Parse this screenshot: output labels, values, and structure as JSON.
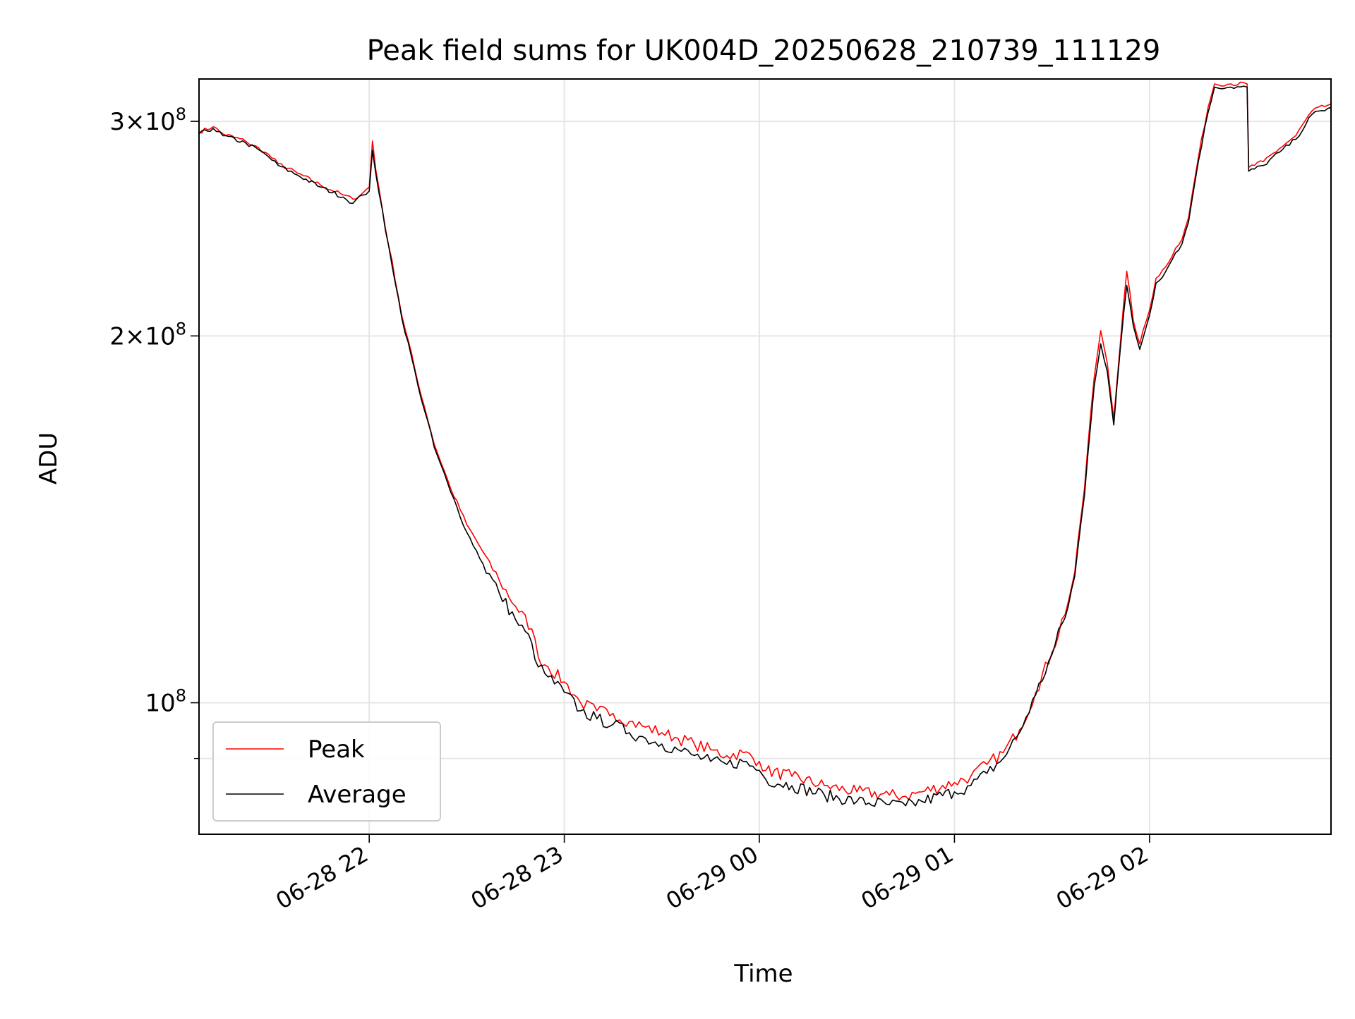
{
  "chart_data": {
    "type": "line",
    "title": "Peak field sums for UK004D_20250628_210739_111129",
    "xlabel": "Time",
    "ylabel": "ADU",
    "y_scale": "log",
    "ylim": [
      78000000,
      325000000
    ],
    "xlim": [
      "2025-06-28 21:07:39",
      "2025-06-29 02:55:49"
    ],
    "grid": true,
    "legend_position": "lower-left",
    "x_ticks": [
      {
        "value": "2025-06-28 22:00",
        "label": "06-28 22"
      },
      {
        "value": "2025-06-28 23:00",
        "label": "06-28 23"
      },
      {
        "value": "2025-06-29 00:00",
        "label": "06-29 00"
      },
      {
        "value": "2025-06-29 01:00",
        "label": "06-29 01"
      },
      {
        "value": "2025-06-29 02:00",
        "label": "06-29 02"
      }
    ],
    "y_ticks": [
      {
        "value": 100000000,
        "mantissa": "",
        "exponent": "8"
      },
      {
        "value": 200000000,
        "mantissa": "2",
        "exponent": "8"
      },
      {
        "value": 300000000,
        "mantissa": "3",
        "exponent": "8"
      }
    ],
    "y_minor_ticks": [
      90000000
    ],
    "colors": {
      "peak": "#ff0000",
      "average": "#000000",
      "grid": "#e6e6e6"
    },
    "series": [
      {
        "name": "Peak",
        "color": "#ff0000",
        "points": [
          [
            "2025-06-28 21:07:39",
            294000000.0
          ],
          [
            "2025-06-28 21:12",
            297000000.0
          ],
          [
            "2025-06-28 21:15",
            293000000.0
          ],
          [
            "2025-06-28 21:22",
            289000000.0
          ],
          [
            "2025-06-28 21:28",
            283000000.0
          ],
          [
            "2025-06-28 21:32",
            277000000.0
          ],
          [
            "2025-06-28 21:38",
            272000000.0
          ],
          [
            "2025-06-28 21:45",
            266000000.0
          ],
          [
            "2025-06-28 21:52",
            261000000.0
          ],
          [
            "2025-06-28 21:55",
            259000000.0
          ],
          [
            "2025-06-28 21:58",
            262000000.0
          ],
          [
            "2025-06-28 22:00",
            265000000.0
          ],
          [
            "2025-06-28 22:01",
            289000000.0
          ],
          [
            "2025-06-28 22:02",
            274000000.0
          ],
          [
            "2025-06-28 22:05",
            245000000.0
          ],
          [
            "2025-06-28 22:10",
            208000000.0
          ],
          [
            "2025-06-28 22:15",
            183000000.0
          ],
          [
            "2025-06-28 22:20",
            163000000.0
          ],
          [
            "2025-06-28 22:25",
            150000000.0
          ],
          [
            "2025-06-28 22:30",
            140000000.0
          ],
          [
            "2025-06-28 22:35",
            133000000.0
          ],
          [
            "2025-06-28 22:40",
            126000000.0
          ],
          [
            "2025-06-28 22:45",
            120000000.0
          ],
          [
            "2025-06-28 22:50",
            115000000.0
          ],
          [
            "2025-06-28 22:52",
            109000000.0
          ],
          [
            "2025-06-28 22:55",
            107000000.0
          ],
          [
            "2025-06-28 23:00",
            104000000.0
          ],
          [
            "2025-06-28 23:05",
            100000000.0
          ],
          [
            "2025-06-28 23:10",
            98500000.0
          ],
          [
            "2025-06-28 23:15",
            98000000.0
          ],
          [
            "2025-06-28 23:20",
            96500000.0
          ],
          [
            "2025-06-28 23:25",
            95500000.0
          ],
          [
            "2025-06-28 23:30",
            94500000.0
          ],
          [
            "2025-06-28 23:35",
            93500000.0
          ],
          [
            "2025-06-28 23:40",
            92500000.0
          ],
          [
            "2025-06-28 23:45",
            91500000.0
          ],
          [
            "2025-06-28 23:50",
            90500000.0
          ],
          [
            "2025-06-28 23:55",
            91000000.0
          ],
          [
            "2025-06-29 00:00",
            89500000.0
          ],
          [
            "2025-06-29 00:02",
            88000000.0
          ],
          [
            "2025-06-29 00:10",
            87000000.0
          ],
          [
            "2025-06-29 00:20",
            85500000.0
          ],
          [
            "2025-06-29 00:30",
            84500000.0
          ],
          [
            "2025-06-29 00:40",
            84000000.0
          ],
          [
            "2025-06-29 00:45",
            83800000.0
          ],
          [
            "2025-06-29 00:50",
            84500000.0
          ],
          [
            "2025-06-29 01:00",
            86000000.0
          ],
          [
            "2025-06-29 01:05",
            87000000.0
          ],
          [
            "2025-06-29 01:10",
            89000000.0
          ],
          [
            "2025-06-29 01:15",
            91000000.0
          ],
          [
            "2025-06-29 01:20",
            95000000.0
          ],
          [
            "2025-06-29 01:25",
            102000000.0
          ],
          [
            "2025-06-29 01:30",
            110000000.0
          ],
          [
            "2025-06-29 01:35",
            121000000.0
          ],
          [
            "2025-06-29 01:37",
            128000000.0
          ],
          [
            "2025-06-29 01:40",
            150000000.0
          ],
          [
            "2025-06-29 01:43",
            185000000.0
          ],
          [
            "2025-06-29 01:45",
            202000000.0
          ],
          [
            "2025-06-29 01:47",
            190000000.0
          ],
          [
            "2025-06-29 01:49",
            171000000.0
          ],
          [
            "2025-06-29 01:51",
            197000000.0
          ],
          [
            "2025-06-29 01:53",
            226000000.0
          ],
          [
            "2025-06-29 01:55",
            206000000.0
          ],
          [
            "2025-06-29 01:57",
            197000000.0
          ],
          [
            "2025-06-29 02:00",
            210000000.0
          ],
          [
            "2025-06-29 02:02",
            223000000.0
          ],
          [
            "2025-06-29 02:05",
            228000000.0
          ],
          [
            "2025-06-29 02:08",
            236000000.0
          ],
          [
            "2025-06-29 02:10",
            240000000.0
          ],
          [
            "2025-06-29 02:12",
            250000000.0
          ],
          [
            "2025-06-29 02:15",
            280000000.0
          ],
          [
            "2025-06-29 02:18",
            308000000.0
          ],
          [
            "2025-06-29 02:20",
            322000000.0
          ],
          [
            "2025-06-29 02:25",
            322000000.0
          ],
          [
            "2025-06-29 02:30",
            322000000.0
          ],
          [
            "2025-06-29 02:30:30",
            275000000.0
          ],
          [
            "2025-06-29 02:35",
            278000000.0
          ],
          [
            "2025-06-29 02:40",
            285000000.0
          ],
          [
            "2025-06-29 02:45",
            292000000.0
          ],
          [
            "2025-06-29 02:50",
            306000000.0
          ],
          [
            "2025-06-29 02:55:49",
            310000000.0
          ]
        ]
      },
      {
        "name": "Average",
        "color": "#000000",
        "points": [
          [
            "2025-06-28 21:07:39",
            293000000.0
          ],
          [
            "2025-06-28 21:12",
            296000000.0
          ],
          [
            "2025-06-28 21:15",
            292000000.0
          ],
          [
            "2025-06-28 21:22",
            288000000.0
          ],
          [
            "2025-06-28 21:28",
            282000000.0
          ],
          [
            "2025-06-28 21:32",
            276000000.0
          ],
          [
            "2025-06-28 21:38",
            271000000.0
          ],
          [
            "2025-06-28 21:45",
            265000000.0
          ],
          [
            "2025-06-28 21:52",
            260000000.0
          ],
          [
            "2025-06-28 21:55",
            257000000.0
          ],
          [
            "2025-06-28 21:58",
            261000000.0
          ],
          [
            "2025-06-28 22:00",
            263000000.0
          ],
          [
            "2025-06-28 22:01",
            284000000.0
          ],
          [
            "2025-06-28 22:02",
            272000000.0
          ],
          [
            "2025-06-28 22:05",
            244000000.0
          ],
          [
            "2025-06-28 22:10",
            207000000.0
          ],
          [
            "2025-06-28 22:15",
            182000000.0
          ],
          [
            "2025-06-28 22:20",
            162000000.0
          ],
          [
            "2025-06-28 22:25",
            149000000.0
          ],
          [
            "2025-06-28 22:30",
            138000000.0
          ],
          [
            "2025-06-28 22:35",
            130000000.0
          ],
          [
            "2025-06-28 22:40",
            123000000.0
          ],
          [
            "2025-06-28 22:45",
            117000000.0
          ],
          [
            "2025-06-28 22:50",
            112000000.0
          ],
          [
            "2025-06-28 22:52",
            107000000.0
          ],
          [
            "2025-06-28 22:55",
            105000000.0
          ],
          [
            "2025-06-28 23:00",
            102000000.0
          ],
          [
            "2025-06-28 23:05",
            98500000.0
          ],
          [
            "2025-06-28 23:10",
            97000000.0
          ],
          [
            "2025-06-28 23:15",
            96000000.0
          ],
          [
            "2025-06-28 23:20",
            94500000.0
          ],
          [
            "2025-06-28 23:25",
            93500000.0
          ],
          [
            "2025-06-28 23:30",
            92500000.0
          ],
          [
            "2025-06-28 23:35",
            91500000.0
          ],
          [
            "2025-06-28 23:40",
            90500000.0
          ],
          [
            "2025-06-28 23:45",
            89500000.0
          ],
          [
            "2025-06-28 23:50",
            89000000.0
          ],
          [
            "2025-06-28 23:55",
            89500000.0
          ],
          [
            "2025-06-29 00:00",
            88000000.0
          ],
          [
            "2025-06-29 00:02",
            86500000.0
          ],
          [
            "2025-06-29 00:10",
            85500000.0
          ],
          [
            "2025-06-29 00:20",
            84000000.0
          ],
          [
            "2025-06-29 00:30",
            83000000.0
          ],
          [
            "2025-06-29 00:40",
            82500000.0
          ],
          [
            "2025-06-29 00:45",
            82300000.0
          ],
          [
            "2025-06-29 00:50",
            83000000.0
          ],
          [
            "2025-06-29 01:00",
            84500000.0
          ],
          [
            "2025-06-29 01:05",
            85500000.0
          ],
          [
            "2025-06-29 01:10",
            87500000.0
          ],
          [
            "2025-06-29 01:15",
            90000000.0
          ],
          [
            "2025-06-29 01:20",
            94500000.0
          ],
          [
            "2025-06-29 01:25",
            101500000.0
          ],
          [
            "2025-06-29 01:30",
            109500000.0
          ],
          [
            "2025-06-29 01:35",
            120000000.0
          ],
          [
            "2025-06-29 01:37",
            127000000.0
          ],
          [
            "2025-06-29 01:40",
            148000000.0
          ],
          [
            "2025-06-29 01:43",
            182000000.0
          ],
          [
            "2025-06-29 01:45",
            197000000.0
          ],
          [
            "2025-06-29 01:47",
            187000000.0
          ],
          [
            "2025-06-29 01:49",
            169000000.0
          ],
          [
            "2025-06-29 01:51",
            195000000.0
          ],
          [
            "2025-06-29 01:53",
            220000000.0
          ],
          [
            "2025-06-29 01:55",
            204000000.0
          ],
          [
            "2025-06-29 01:57",
            195000000.0
          ],
          [
            "2025-06-29 02:00",
            208000000.0
          ],
          [
            "2025-06-29 02:02",
            221000000.0
          ],
          [
            "2025-06-29 02:05",
            226000000.0
          ],
          [
            "2025-06-29 02:08",
            234000000.0
          ],
          [
            "2025-06-29 02:10",
            238000000.0
          ],
          [
            "2025-06-29 02:12",
            248000000.0
          ],
          [
            "2025-06-29 02:15",
            278000000.0
          ],
          [
            "2025-06-29 02:18",
            305000000.0
          ],
          [
            "2025-06-29 02:20",
            320000000.0
          ],
          [
            "2025-06-29 02:25",
            320000000.0
          ],
          [
            "2025-06-29 02:30",
            320000000.0
          ],
          [
            "2025-06-29 02:30:30",
            273000000.0
          ],
          [
            "2025-06-29 02:35",
            276000000.0
          ],
          [
            "2025-06-29 02:40",
            283000000.0
          ],
          [
            "2025-06-29 02:45",
            290000000.0
          ],
          [
            "2025-06-29 02:50",
            304000000.0
          ],
          [
            "2025-06-29 02:55:49",
            308000000.0
          ]
        ]
      }
    ]
  }
}
